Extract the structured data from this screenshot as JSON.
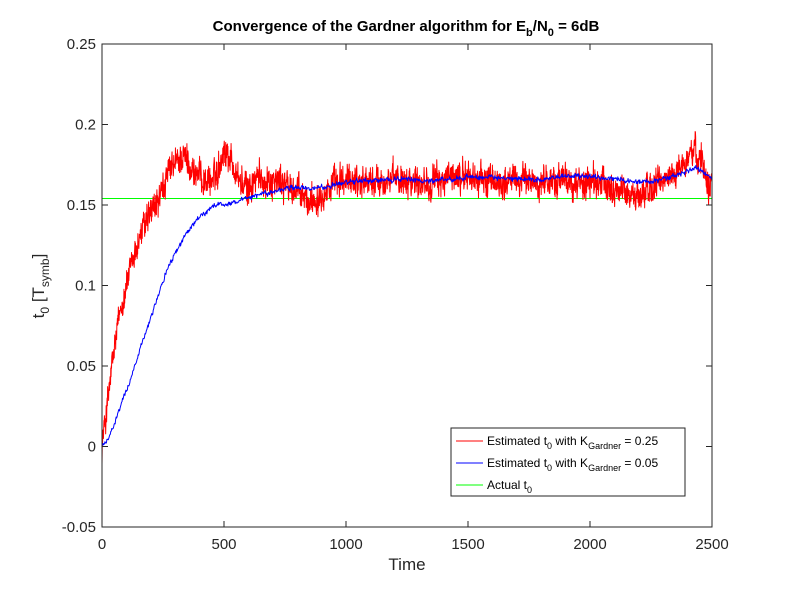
{
  "chart_data": {
    "type": "line",
    "title": {
      "main": "Convergence of the Gardner algorithm for E",
      "sub1": "b",
      "mid": "/N",
      "sub2": "0",
      "tail": " = 6dB"
    },
    "xlabel": "Time",
    "ylabel": {
      "main": "t",
      "sub1": "0",
      "bracket_open": " [T",
      "sub2": "symb",
      "bracket_close": "]"
    },
    "xlim": [
      0,
      2500
    ],
    "ylim": [
      -0.05,
      0.25
    ],
    "xticks": [
      0,
      500,
      1000,
      1500,
      2000,
      2500
    ],
    "xtick_labels": [
      "0",
      "500",
      "1000",
      "1500",
      "2000",
      "2500"
    ],
    "yticks": [
      -0.05,
      0,
      0.05,
      0.1,
      0.15,
      0.2,
      0.25
    ],
    "ytick_labels": [
      "-0.05",
      "0",
      "0.05",
      "0.1",
      "0.15",
      "0.2",
      "0.25"
    ],
    "grid": false,
    "legend_position": "bottom-right",
    "series": [
      {
        "name": "Estimated t0 with KGardner = 0.25",
        "legend": {
          "a": "Estimated t",
          "b": "0",
          "c": " with K",
          "d": "Gardner",
          "e": " = 0.25"
        },
        "color": "#ff0000",
        "noise": 0.011,
        "x": [
          0,
          25,
          50,
          75,
          100,
          125,
          150,
          175,
          200,
          225,
          250,
          275,
          300,
          325,
          350,
          375,
          400,
          425,
          450,
          475,
          500,
          525,
          550,
          575,
          600,
          625,
          650,
          675,
          700,
          725,
          750,
          775,
          800,
          825,
          850,
          875,
          900,
          925,
          950,
          975,
          1000,
          1050,
          1100,
          1150,
          1200,
          1250,
          1300,
          1350,
          1400,
          1450,
          1500,
          1550,
          1600,
          1650,
          1700,
          1750,
          1800,
          1850,
          1900,
          1950,
          2000,
          2050,
          2100,
          2150,
          2200,
          2250,
          2300,
          2350,
          2400,
          2425,
          2450,
          2475,
          2500
        ],
        "values": [
          0.0,
          0.03,
          0.06,
          0.085,
          0.1,
          0.115,
          0.128,
          0.138,
          0.145,
          0.15,
          0.16,
          0.17,
          0.175,
          0.18,
          0.178,
          0.17,
          0.168,
          0.165,
          0.165,
          0.172,
          0.185,
          0.18,
          0.17,
          0.162,
          0.16,
          0.165,
          0.168,
          0.165,
          0.165,
          0.165,
          0.163,
          0.16,
          0.158,
          0.155,
          0.152,
          0.155,
          0.158,
          0.16,
          0.162,
          0.164,
          0.165,
          0.166,
          0.164,
          0.165,
          0.166,
          0.167,
          0.165,
          0.164,
          0.166,
          0.167,
          0.168,
          0.166,
          0.165,
          0.164,
          0.166,
          0.165,
          0.164,
          0.165,
          0.165,
          0.163,
          0.164,
          0.163,
          0.16,
          0.158,
          0.155,
          0.16,
          0.165,
          0.17,
          0.178,
          0.185,
          0.18,
          0.17,
          0.16
        ]
      },
      {
        "name": "Estimated t0 with KGardner = 0.05",
        "legend": {
          "a": "Estimated t",
          "b": "0",
          "c": " with K",
          "d": "Gardner",
          "e": " = 0.05"
        },
        "color": "#0000ff",
        "noise": 0.0018,
        "x": [
          0,
          25,
          50,
          75,
          100,
          125,
          150,
          175,
          200,
          225,
          250,
          275,
          300,
          325,
          350,
          375,
          400,
          425,
          450,
          475,
          500,
          525,
          550,
          575,
          600,
          650,
          700,
          750,
          800,
          850,
          900,
          950,
          1000,
          1050,
          1100,
          1150,
          1200,
          1250,
          1300,
          1350,
          1400,
          1450,
          1500,
          1550,
          1600,
          1650,
          1700,
          1750,
          1800,
          1850,
          1900,
          1950,
          2000,
          2050,
          2100,
          2150,
          2200,
          2250,
          2300,
          2350,
          2400,
          2425,
          2450,
          2475,
          2500
        ],
        "values": [
          0.0,
          0.005,
          0.013,
          0.025,
          0.035,
          0.045,
          0.058,
          0.07,
          0.08,
          0.092,
          0.103,
          0.112,
          0.12,
          0.127,
          0.133,
          0.138,
          0.143,
          0.145,
          0.148,
          0.151,
          0.15,
          0.151,
          0.152,
          0.153,
          0.154,
          0.157,
          0.158,
          0.16,
          0.161,
          0.16,
          0.161,
          0.162,
          0.164,
          0.165,
          0.165,
          0.166,
          0.166,
          0.166,
          0.165,
          0.165,
          0.166,
          0.166,
          0.168,
          0.167,
          0.167,
          0.166,
          0.166,
          0.166,
          0.166,
          0.167,
          0.168,
          0.168,
          0.168,
          0.167,
          0.166,
          0.165,
          0.164,
          0.165,
          0.166,
          0.168,
          0.171,
          0.173,
          0.172,
          0.169,
          0.166
        ]
      },
      {
        "name": "Actual t0",
        "legend": {
          "a": "Actual t",
          "b": "0",
          "c": "",
          "d": "",
          "e": ""
        },
        "color": "#00ff00",
        "noise": 0,
        "x": [
          0,
          2500
        ],
        "values": [
          0.154,
          0.154
        ]
      }
    ]
  }
}
